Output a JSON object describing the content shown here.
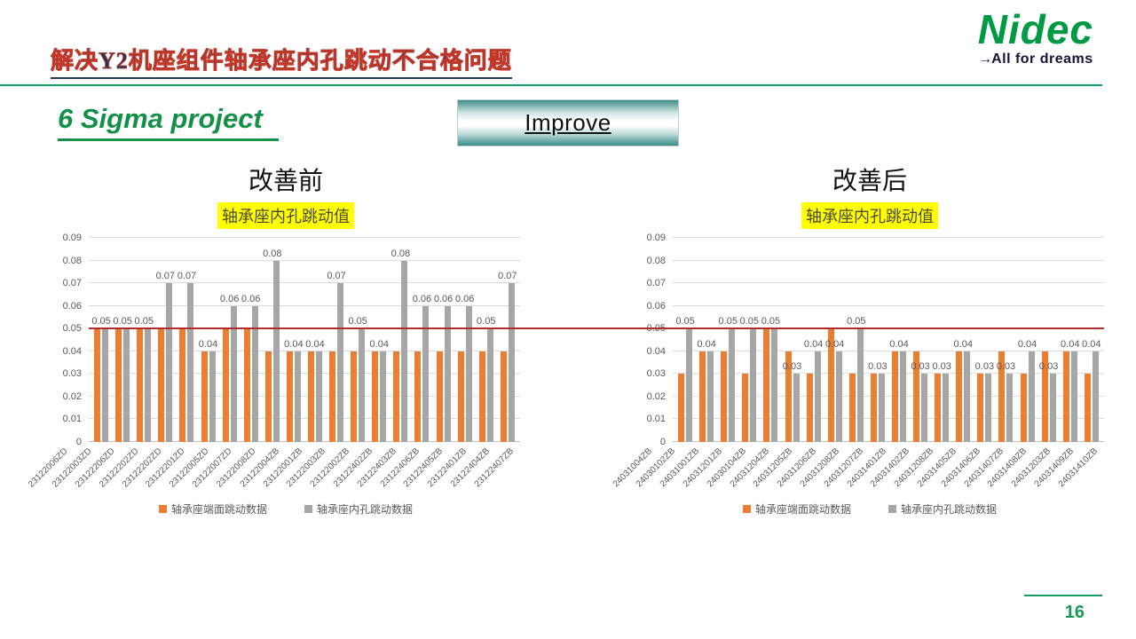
{
  "header": {
    "title": "解决Y2机座组件轴承座内孔跳动不合格问题",
    "logo": {
      "brand": "Nidec",
      "arrow": "→",
      "tagline": "All for dreams"
    }
  },
  "subtitle": "6 Sigma project",
  "banner": {
    "label": "Improve"
  },
  "footer": {
    "page_number": "16"
  },
  "colors": {
    "front_runout_bar": "#ED7D31",
    "bore_runout_bar": "#A6A6A6",
    "limit_line": "#B02B2B",
    "brand_green": "#009A44",
    "title_highlight": "#FFFF00"
  },
  "chart_data": [
    {
      "type": "bar",
      "heading": "改善前",
      "title": "轴承座内孔跳动值",
      "categories": [
        "23122006ZD",
        "23122003ZD",
        "23122206ZD",
        "23122202ZD",
        "23122202ZD",
        "23122201ZD",
        "23122005ZD",
        "23122007ZD",
        "23122008ZD",
        "23122004ZB",
        "23122001ZB",
        "23122003ZB",
        "23122002ZB",
        "23122402ZB",
        "23122403ZB",
        "23122406ZB",
        "23122405ZB",
        "23122401ZB",
        "23122404ZB",
        "23122407ZB"
      ],
      "series": [
        {
          "name": "轴承座端面跳动数据",
          "color": "#ED7D31",
          "values": [
            0.05,
            0.05,
            0.05,
            0.05,
            0.05,
            0.04,
            0.05,
            0.05,
            0.04,
            0.04,
            0.04,
            0.04,
            0.04,
            0.04,
            0.04,
            0.04,
            0.04,
            0.04,
            0.04,
            0.04
          ]
        },
        {
          "name": "轴承座内孔跳动数据",
          "color": "#A6A6A6",
          "values": [
            0.05,
            0.05,
            0.05,
            0.07,
            0.07,
            0.04,
            0.06,
            0.06,
            0.08,
            0.04,
            0.04,
            0.07,
            0.05,
            0.04,
            0.08,
            0.06,
            0.06,
            0.06,
            0.05,
            0.07
          ]
        }
      ],
      "data_labels_series": 1,
      "ylim": [
        0,
        0.09
      ],
      "yticks": [
        "0.09",
        "0.08",
        "0.07",
        "0.06",
        "0.05",
        "0.04",
        "0.03",
        "0.02",
        "0.01",
        "0"
      ],
      "limit_line": {
        "value": 0.05,
        "color": "#B02B2B"
      },
      "grid": true,
      "legend_position": "bottom"
    },
    {
      "type": "bar",
      "heading": "改善后",
      "title": "轴承座内孔跳动值",
      "categories": [
        "24031004ZB",
        "24030102ZB",
        "24031001ZB",
        "24031201ZB",
        "24030104ZB",
        "24031204ZB",
        "24031205ZB",
        "24031206ZB",
        "24031208ZB",
        "24031207ZB",
        "24031401ZB",
        "24031402ZB",
        "24031208ZB",
        "24031405ZB",
        "24031406ZB",
        "24031407ZB",
        "24031408ZB",
        "24031203ZB",
        "24031409ZB",
        "24031410ZB"
      ],
      "series": [
        {
          "name": "轴承座端面跳动数据",
          "color": "#ED7D31",
          "values": [
            0.03,
            0.04,
            0.04,
            0.03,
            0.05,
            0.04,
            0.03,
            0.05,
            0.03,
            0.03,
            0.04,
            0.04,
            0.03,
            0.04,
            0.03,
            0.04,
            0.03,
            0.04,
            0.04,
            0.03
          ]
        },
        {
          "name": "轴承座内孔跳动数据",
          "color": "#A6A6A6",
          "values": [
            0.05,
            0.04,
            0.05,
            0.05,
            0.05,
            0.03,
            0.04,
            0.04,
            0.05,
            0.03,
            0.04,
            0.03,
            0.03,
            0.04,
            0.03,
            0.03,
            0.04,
            0.03,
            0.04,
            0.04
          ]
        }
      ],
      "data_labels_series": 1,
      "ylim": [
        0,
        0.09
      ],
      "yticks": [
        "0.09",
        "0.08",
        "0.07",
        "0.06",
        "0.05",
        "0.04",
        "0.03",
        "0.02",
        "0.01",
        "0"
      ],
      "limit_line": {
        "value": 0.05,
        "color": "#B02B2B"
      },
      "grid": true,
      "legend_position": "bottom"
    }
  ]
}
